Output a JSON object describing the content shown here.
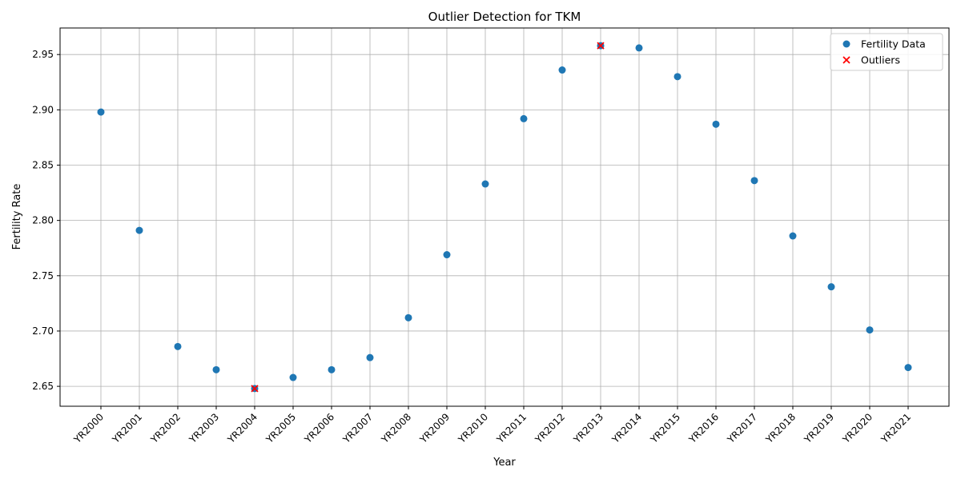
{
  "chart_data": {
    "type": "scatter",
    "title": "Outlier Detection for TKM",
    "xlabel": "Year",
    "ylabel": "Fertility Rate",
    "categories": [
      "YR2000",
      "YR2001",
      "YR2002",
      "YR2003",
      "YR2004",
      "YR2005",
      "YR2006",
      "YR2007",
      "YR2008",
      "YR2009",
      "YR2010",
      "YR2011",
      "YR2012",
      "YR2013",
      "YR2014",
      "YR2015",
      "YR2016",
      "YR2017",
      "YR2018",
      "YR2019",
      "YR2020",
      "YR2021"
    ],
    "ylim": [
      2.632,
      2.974
    ],
    "yticks": [
      2.65,
      2.7,
      2.75,
      2.8,
      2.85,
      2.9,
      2.95
    ],
    "ytick_labels": [
      "2.65",
      "2.70",
      "2.75",
      "2.80",
      "2.85",
      "2.90",
      "2.95"
    ],
    "grid": true,
    "legend_position": "top-right",
    "series": [
      {
        "name": "Fertility Data",
        "marker": "circle",
        "color": "#1f77b4",
        "values": [
          2.898,
          2.791,
          2.686,
          2.665,
          2.648,
          2.658,
          2.665,
          2.676,
          2.712,
          2.769,
          2.833,
          2.892,
          2.936,
          2.958,
          2.956,
          2.93,
          2.887,
          2.836,
          2.786,
          2.74,
          2.701,
          2.667
        ]
      },
      {
        "name": "Outliers",
        "marker": "x",
        "color": "#ff0000",
        "x": [
          "YR2004",
          "YR2013"
        ],
        "values": [
          2.648,
          2.958
        ]
      }
    ]
  }
}
